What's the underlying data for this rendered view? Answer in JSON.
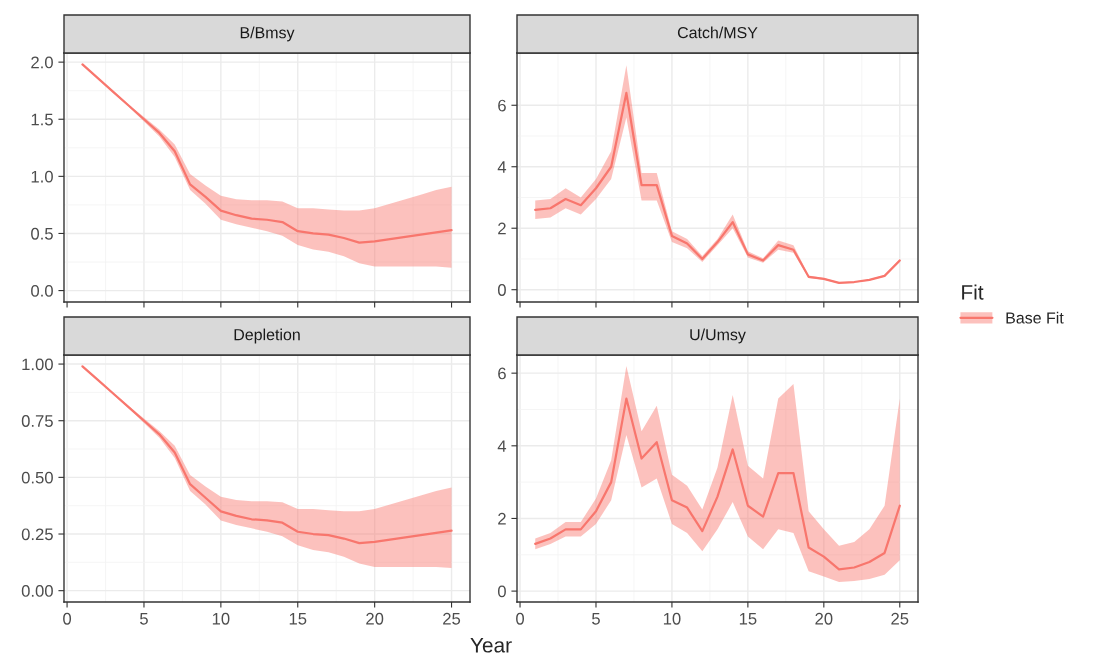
{
  "chart_data": [
    {
      "type": "line",
      "title": "B/Bmsy",
      "x": [
        1,
        2,
        3,
        4,
        5,
        6,
        7,
        8,
        9,
        10,
        11,
        12,
        13,
        14,
        15,
        16,
        17,
        18,
        19,
        20,
        21,
        22,
        23,
        24,
        25
      ],
      "series": [
        {
          "color": "#f8766d",
          "values": [
            1.98,
            1.86,
            1.74,
            1.62,
            1.5,
            1.38,
            1.22,
            0.93,
            0.82,
            0.7,
            0.66,
            0.63,
            0.62,
            0.6,
            0.52,
            0.5,
            0.49,
            0.46,
            0.42,
            0.43,
            0.45,
            0.47,
            0.49,
            0.51,
            0.53
          ],
          "lower": [
            1.98,
            1.86,
            1.73,
            1.61,
            1.48,
            1.35,
            1.17,
            0.88,
            0.76,
            0.62,
            0.58,
            0.55,
            0.52,
            0.48,
            0.4,
            0.36,
            0.34,
            0.3,
            0.24,
            0.21,
            0.21,
            0.21,
            0.21,
            0.21,
            0.2
          ],
          "upper": [
            1.98,
            1.86,
            1.75,
            1.63,
            1.52,
            1.41,
            1.28,
            1.02,
            0.92,
            0.83,
            0.8,
            0.79,
            0.79,
            0.78,
            0.72,
            0.72,
            0.71,
            0.7,
            0.7,
            0.72,
            0.76,
            0.8,
            0.84,
            0.88,
            0.91
          ]
        }
      ],
      "xlim": [
        -0.2,
        26.2
      ],
      "xticks": [
        0,
        5,
        10,
        15,
        20,
        25
      ],
      "ylim": [
        -0.1,
        2.08
      ],
      "yticks": [
        {
          "value": 0,
          "label": "0.0"
        },
        {
          "value": 0.5,
          "label": "0.5"
        },
        {
          "value": 1,
          "label": "1.0"
        },
        {
          "value": 1.5,
          "label": "1.5"
        },
        {
          "value": 2,
          "label": "2.0"
        }
      ],
      "tick_labels": "y",
      "grid": true,
      "legend": false
    },
    {
      "type": "line",
      "title": "Catch/MSY",
      "x": [
        1,
        2,
        3,
        4,
        5,
        6,
        7,
        8,
        9,
        10,
        11,
        12,
        13,
        14,
        15,
        16,
        17,
        18,
        19,
        20,
        21,
        22,
        23,
        24,
        25
      ],
      "series": [
        {
          "color": "#f8766d",
          "values": [
            2.6,
            2.65,
            2.95,
            2.75,
            3.3,
            4.0,
            6.4,
            3.4,
            3.4,
            1.75,
            1.5,
            1.0,
            1.55,
            2.2,
            1.15,
            0.95,
            1.45,
            1.3,
            0.42,
            0.35,
            0.22,
            0.25,
            0.32,
            0.45,
            0.95
          ],
          "lower": [
            2.3,
            2.35,
            2.65,
            2.45,
            2.95,
            3.6,
            5.6,
            2.9,
            2.9,
            1.55,
            1.35,
            0.9,
            1.45,
            2.0,
            1.05,
            0.88,
            1.3,
            1.2,
            0.38,
            0.32,
            0.2,
            0.23,
            0.3,
            0.42,
            0.9
          ],
          "upper": [
            2.9,
            2.95,
            3.3,
            3.0,
            3.6,
            4.5,
            7.3,
            3.8,
            3.8,
            1.9,
            1.65,
            1.1,
            1.65,
            2.45,
            1.25,
            1.02,
            1.6,
            1.45,
            0.46,
            0.38,
            0.24,
            0.27,
            0.34,
            0.48,
            1.0
          ]
        }
      ],
      "xlim": [
        -0.2,
        26.2
      ],
      "xticks": [
        0,
        5,
        10,
        15,
        20,
        25
      ],
      "ylim": [
        -0.4,
        7.7
      ],
      "yticks": [
        0,
        2,
        4,
        6
      ],
      "tick_labels": "y",
      "grid": true,
      "legend": false
    },
    {
      "type": "line",
      "title": "Depletion",
      "xlabel": "Year",
      "x": [
        1,
        2,
        3,
        4,
        5,
        6,
        7,
        8,
        9,
        10,
        11,
        12,
        13,
        14,
        15,
        16,
        17,
        18,
        19,
        20,
        21,
        22,
        23,
        24,
        25
      ],
      "series": [
        {
          "color": "#f8766d",
          "values": [
            0.99,
            0.93,
            0.87,
            0.81,
            0.75,
            0.69,
            0.61,
            0.47,
            0.41,
            0.35,
            0.33,
            0.315,
            0.31,
            0.3,
            0.26,
            0.25,
            0.245,
            0.23,
            0.21,
            0.215,
            0.225,
            0.235,
            0.245,
            0.255,
            0.265
          ],
          "lower": [
            0.99,
            0.93,
            0.865,
            0.805,
            0.74,
            0.675,
            0.585,
            0.44,
            0.38,
            0.31,
            0.29,
            0.275,
            0.26,
            0.24,
            0.2,
            0.18,
            0.17,
            0.15,
            0.12,
            0.105,
            0.105,
            0.105,
            0.105,
            0.105,
            0.1
          ],
          "upper": [
            0.99,
            0.93,
            0.875,
            0.815,
            0.76,
            0.705,
            0.64,
            0.51,
            0.46,
            0.415,
            0.4,
            0.395,
            0.395,
            0.39,
            0.36,
            0.36,
            0.355,
            0.35,
            0.35,
            0.36,
            0.38,
            0.4,
            0.42,
            0.44,
            0.455
          ]
        }
      ],
      "xlim": [
        -0.2,
        26.2
      ],
      "xticks": [
        0,
        5,
        10,
        15,
        20,
        25
      ],
      "ylim": [
        -0.05,
        1.04
      ],
      "yticks": [
        {
          "value": 0,
          "label": "0.00"
        },
        {
          "value": 0.25,
          "label": "0.25"
        },
        {
          "value": 0.5,
          "label": "0.50"
        },
        {
          "value": 0.75,
          "label": "0.75"
        },
        {
          "value": 1,
          "label": "1.00"
        }
      ],
      "grid": true,
      "legend": false
    },
    {
      "type": "line",
      "title": "U/Umsy",
      "legend_title": "Fit",
      "x": [
        1,
        2,
        3,
        4,
        5,
        6,
        7,
        8,
        9,
        10,
        11,
        12,
        13,
        14,
        15,
        16,
        17,
        18,
        19,
        20,
        21,
        22,
        23,
        24,
        25
      ],
      "series": [
        {
          "name": "Base Fit",
          "color": "#f8766d",
          "values": [
            1.3,
            1.45,
            1.7,
            1.7,
            2.2,
            3.0,
            5.3,
            3.65,
            4.1,
            2.5,
            2.3,
            1.65,
            2.6,
            3.9,
            2.35,
            2.05,
            3.25,
            3.25,
            1.2,
            0.95,
            0.6,
            0.65,
            0.8,
            1.05,
            2.35
          ],
          "lower": [
            1.15,
            1.3,
            1.5,
            1.5,
            1.85,
            2.5,
            4.3,
            2.85,
            3.1,
            1.85,
            1.6,
            1.1,
            1.7,
            2.45,
            1.5,
            1.15,
            1.7,
            1.6,
            0.55,
            0.4,
            0.25,
            0.28,
            0.33,
            0.45,
            0.85
          ],
          "upper": [
            1.45,
            1.6,
            1.9,
            1.9,
            2.55,
            3.6,
            6.2,
            4.4,
            5.1,
            3.2,
            2.9,
            2.25,
            3.4,
            5.4,
            3.45,
            3.1,
            5.3,
            5.7,
            2.2,
            1.7,
            1.25,
            1.35,
            1.7,
            2.35,
            5.3
          ]
        }
      ],
      "xlim": [
        -0.2,
        26.2
      ],
      "xticks": [
        0,
        5,
        10,
        15,
        20,
        25
      ],
      "ylim": [
        -0.3,
        6.5
      ],
      "yticks": [
        0,
        2,
        4,
        6
      ],
      "grid": true,
      "legend": "right"
    }
  ]
}
